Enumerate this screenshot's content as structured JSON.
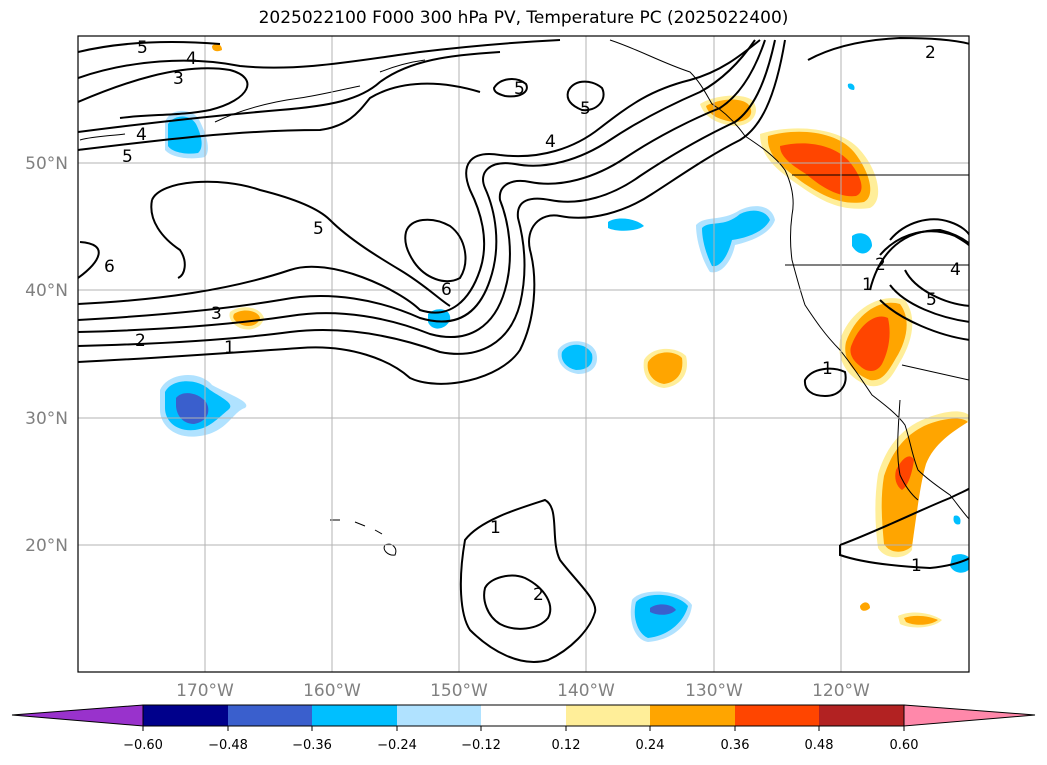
{
  "title": "2025022100 F000 300 hPa PV, Temperature PC (2025022400)",
  "lat_labels": [
    "50°N",
    "40°N",
    "30°N",
    "20°N"
  ],
  "lon_labels": [
    "170°W",
    "160°W",
    "150°W",
    "140°W",
    "130°W",
    "120°W"
  ],
  "colorbar": {
    "ticks": [
      "−0.60",
      "−0.48",
      "−0.36",
      "−0.24",
      "−0.12",
      "0.12",
      "0.24",
      "0.36",
      "0.48",
      "0.60"
    ],
    "colors": [
      "#9932cc",
      "#00008b",
      "#3a5fcd",
      "#00bfff",
      "#b0e2ff",
      "#ffffff",
      "#ffee99",
      "#ffa500",
      "#ff4500",
      "#b22222",
      "#ff88aa"
    ]
  },
  "contour_labels": [
    "5",
    "4",
    "3",
    "4",
    "5",
    "5",
    "3",
    "2",
    "1",
    "6",
    "6",
    "5",
    "4",
    "5",
    "1",
    "2",
    "1",
    "2",
    "4",
    "5",
    "1",
    "1",
    "2"
  ]
}
